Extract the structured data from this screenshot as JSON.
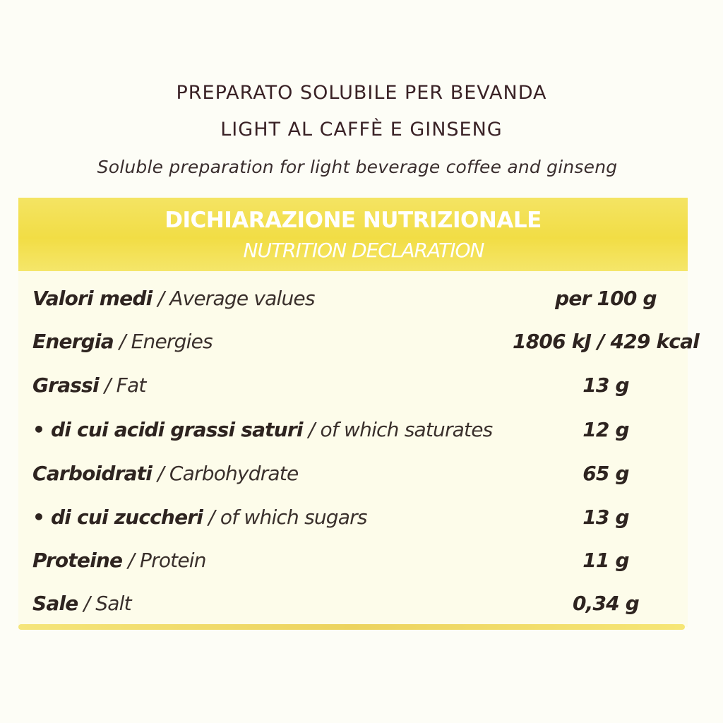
{
  "heading": {
    "line1": "PREPARATO SOLUBILE PER BEVANDA",
    "line2": "LIGHT AL CAFFÈ E GINSENG",
    "subtitle": "Soluble preparation for light beverage coffee and ginseng"
  },
  "band": {
    "title_it": "DICHIARAZIONE NUTRIZIONALE",
    "title_en": "NUTRITION DECLARATION",
    "color": "#f2dd45"
  },
  "rows": [
    {
      "it": "Valori medi",
      "en": "Average values",
      "value": "per 100 g"
    },
    {
      "it": "Energia",
      "en": "Energies",
      "value": "1806 kJ / 429 kcal"
    },
    {
      "it": "Grassi",
      "en": "Fat",
      "value": "13 g"
    },
    {
      "it": "• di cui acidi grassi saturi",
      "en": "of which saturates",
      "value": "12 g"
    },
    {
      "it": "Carboidrati",
      "en": "Carbohydrate",
      "value": "65 g"
    },
    {
      "it": "• di cui zuccheri",
      "en": "of which sugars",
      "value": "13 g"
    },
    {
      "it": "Proteine",
      "en": "Protein",
      "value": "11 g"
    },
    {
      "it": "Sale",
      "en": "Salt",
      "value": "0,34 g"
    }
  ]
}
